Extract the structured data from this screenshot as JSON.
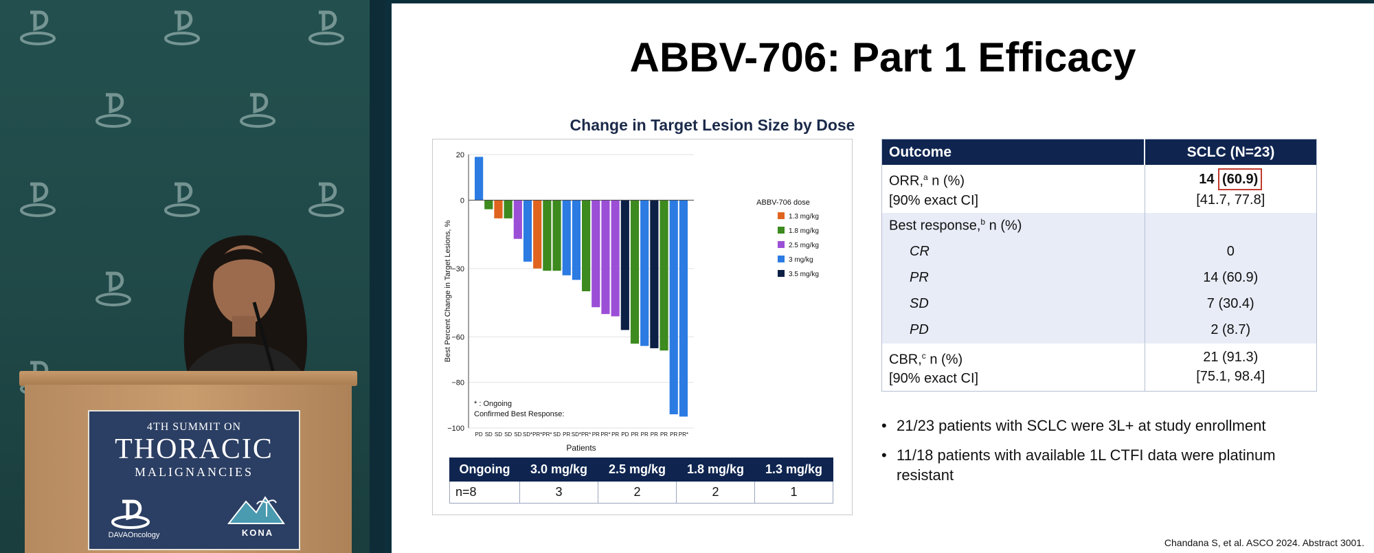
{
  "slide": {
    "title": "ABBV-706: Part 1 Efficacy",
    "citation": "Chandana S, et al. ASCO 2024. Abstract 3001."
  },
  "podium": {
    "summary_line": "4TH SUMMIT ON",
    "main_line": "THORACIC",
    "sub_line": "MALIGNANCIES",
    "logo_left_text": "DAVAOncology",
    "logo_right_text": "KONA"
  },
  "chart_data": {
    "type": "bar",
    "title": "Change in Target Lesion Size by Dose",
    "xlabel": "Patients",
    "ylabel": "Best Percent Change in Target Lesions, %",
    "ylim": [
      -100,
      20
    ],
    "yticks": [
      20,
      0,
      -30,
      -60,
      -80,
      -100
    ],
    "legend_title": "ABBV-706 dose",
    "legend_position": "right",
    "legend": [
      {
        "name": "1.3 mg/kg",
        "color": "#e0641d"
      },
      {
        "name": "1.8 mg/kg",
        "color": "#3d8a1f"
      },
      {
        "name": "2.5 mg/kg",
        "color": "#9b4fd6"
      },
      {
        "name": "3 mg/kg",
        "color": "#2b7be2"
      },
      {
        "name": "3.5 mg/kg",
        "color": "#0c1f45"
      }
    ],
    "categories": [
      "PD",
      "SD",
      "SD",
      "SD",
      "SD",
      "SD*",
      "PR*",
      "PR*",
      "SD",
      "PR",
      "SD*",
      "PR*",
      "PR",
      "PR*",
      "PR",
      "PD",
      "PR",
      "PR",
      "PR",
      "PR",
      "PR",
      "PR*"
    ],
    "values": [
      19,
      -4,
      -8,
      -8,
      -17,
      -27,
      -30,
      -31,
      -31,
      -33,
      -35,
      -40,
      -47,
      -50,
      -51,
      -57,
      -63,
      -64,
      -65,
      -66,
      -94,
      -95
    ],
    "doses": [
      "3 mg/kg",
      "1.8 mg/kg",
      "1.3 mg/kg",
      "1.8 mg/kg",
      "2.5 mg/kg",
      "3 mg/kg",
      "1.3 mg/kg",
      "1.8 mg/kg",
      "1.8 mg/kg",
      "3 mg/kg",
      "3 mg/kg",
      "1.8 mg/kg",
      "2.5 mg/kg",
      "2.5 mg/kg",
      "2.5 mg/kg",
      "3.5 mg/kg",
      "1.8 mg/kg",
      "3 mg/kg",
      "3.5 mg/kg",
      "1.8 mg/kg",
      "3 mg/kg",
      "3 mg/kg"
    ],
    "notes": [
      "* : Ongoing",
      "Confirmed Best Response:"
    ],
    "grid": true
  },
  "dose_table": {
    "headers": [
      "Ongoing",
      "3.0 mg/kg",
      "2.5 mg/kg",
      "1.8 mg/kg",
      "1.3 mg/kg"
    ],
    "row": [
      "n=8",
      "3",
      "2",
      "2",
      "1"
    ]
  },
  "outcome_table": {
    "headers": [
      "Outcome",
      "SCLC (N=23)"
    ],
    "orr": {
      "label": "ORR,",
      "sup": "a",
      "label_rest": " n (%)",
      "ci_label": "[90% exact CI]",
      "value_n": "14",
      "value_pct": "(60.9)",
      "ci": "[41.7, 77.8]"
    },
    "best_response": {
      "label": "Best response,",
      "sup": "b",
      "label_rest": " n (%)"
    },
    "rows": [
      {
        "label": "CR",
        "value": "0"
      },
      {
        "label": "PR",
        "value": "14 (60.9)"
      },
      {
        "label": "SD",
        "value": "7 (30.4)"
      },
      {
        "label": "PD",
        "value": "2 (8.7)"
      }
    ],
    "cbr": {
      "label": "CBR,",
      "sup": "c",
      "label_rest": " n (%)",
      "ci_label": "[90% exact CI]",
      "value": "21 (91.3)",
      "ci": "[75.1, 98.4]"
    }
  },
  "bullets": [
    "21/23 patients with SCLC were 3L+ at study enrollment",
    "11/18 patients with available 1L CTFI data were platinum resistant"
  ]
}
